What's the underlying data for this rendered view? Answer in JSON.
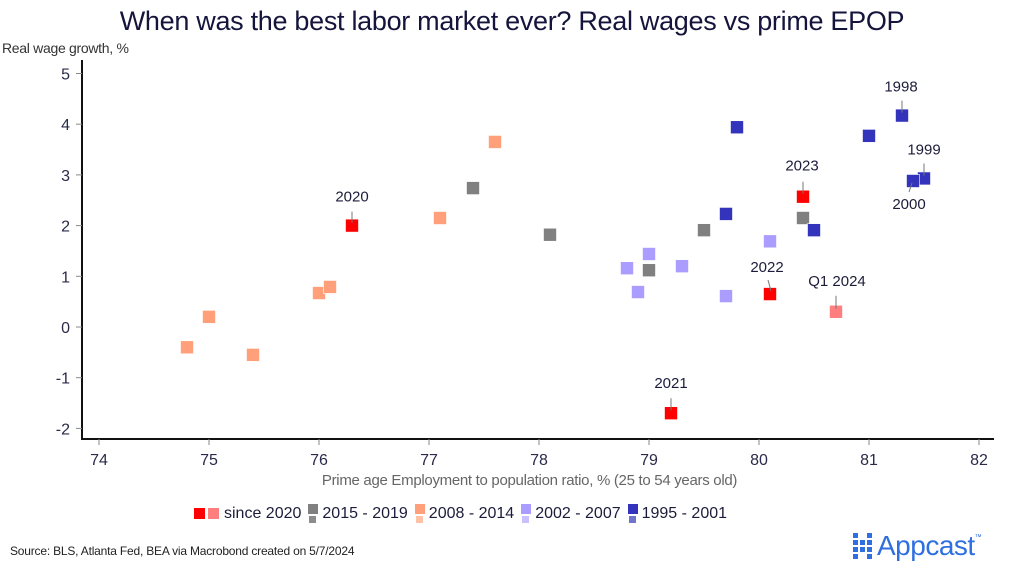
{
  "chart_data": {
    "type": "scatter",
    "title": "When was the best labor market ever? Real wages vs prime EPOP",
    "xlabel": "Prime age Employment to population ratio, % (25 to 54 years old)",
    "ylabel": "Real wage growth, %",
    "xlim": [
      74,
      82
    ],
    "ylim": [
      -2,
      5
    ],
    "xticks": [
      "74",
      "75",
      "76",
      "77",
      "78",
      "79",
      "80",
      "81",
      "82"
    ],
    "yticks": [
      "5",
      "4",
      "3",
      "2",
      "1",
      "0",
      "-1",
      "-2"
    ],
    "grid": false,
    "legend_position": "bottom",
    "series": [
      {
        "name": "since 2020",
        "color": "#ff0000",
        "color_light": "#ff7f7f",
        "points": [
          {
            "x": 76.3,
            "y": 2.0,
            "label": "2020"
          },
          {
            "x": 79.2,
            "y": -1.7,
            "label": "2021"
          },
          {
            "x": 80.1,
            "y": 0.65,
            "label": "2022"
          },
          {
            "x": 80.4,
            "y": 2.57,
            "label": "2023"
          },
          {
            "x": 80.7,
            "y": 0.3,
            "label": "Q1 2024",
            "light": true
          }
        ]
      },
      {
        "name": "2015 - 2019",
        "color": "#808080",
        "color_light": "#8c8c8c",
        "points": [
          {
            "x": 77.4,
            "y": 2.74
          },
          {
            "x": 78.1,
            "y": 1.82
          },
          {
            "x": 79.0,
            "y": 1.12
          },
          {
            "x": 79.5,
            "y": 1.91
          },
          {
            "x": 80.4,
            "y": 2.15
          }
        ]
      },
      {
        "name": "2008 - 2014",
        "color": "#ffa07a",
        "color_light": "#ffc2a6",
        "points": [
          {
            "x": 74.8,
            "y": -0.4
          },
          {
            "x": 75.0,
            "y": 0.2
          },
          {
            "x": 75.4,
            "y": -0.55
          },
          {
            "x": 76.0,
            "y": 0.67
          },
          {
            "x": 76.1,
            "y": 0.79
          },
          {
            "x": 77.1,
            "y": 2.15
          },
          {
            "x": 77.6,
            "y": 3.65
          }
        ]
      },
      {
        "name": "2002 - 2007",
        "color": "#ab9cff",
        "color_light": "#c9c0ff",
        "points": [
          {
            "x": 78.8,
            "y": 1.16
          },
          {
            "x": 78.9,
            "y": 0.69
          },
          {
            "x": 79.0,
            "y": 1.44
          },
          {
            "x": 79.3,
            "y": 1.2
          },
          {
            "x": 79.7,
            "y": 0.61
          },
          {
            "x": 80.1,
            "y": 1.69
          }
        ]
      },
      {
        "name": "1995 - 2001",
        "color": "#3333bb",
        "color_light": "#6f74cc",
        "points": [
          {
            "x": 79.7,
            "y": 2.23
          },
          {
            "x": 79.8,
            "y": 3.94
          },
          {
            "x": 80.5,
            "y": 1.91
          },
          {
            "x": 81.0,
            "y": 3.77
          },
          {
            "x": 81.3,
            "y": 4.17,
            "label": "1998"
          },
          {
            "x": 81.5,
            "y": 2.93,
            "label": "1999"
          },
          {
            "x": 81.4,
            "y": 2.88,
            "label": "2000"
          }
        ]
      }
    ]
  },
  "source": "Source: BLS, Atlanta Fed, BEA via Macrobond created on 5/7/2024",
  "logo": {
    "name": "Appcast",
    "tm": "™"
  }
}
